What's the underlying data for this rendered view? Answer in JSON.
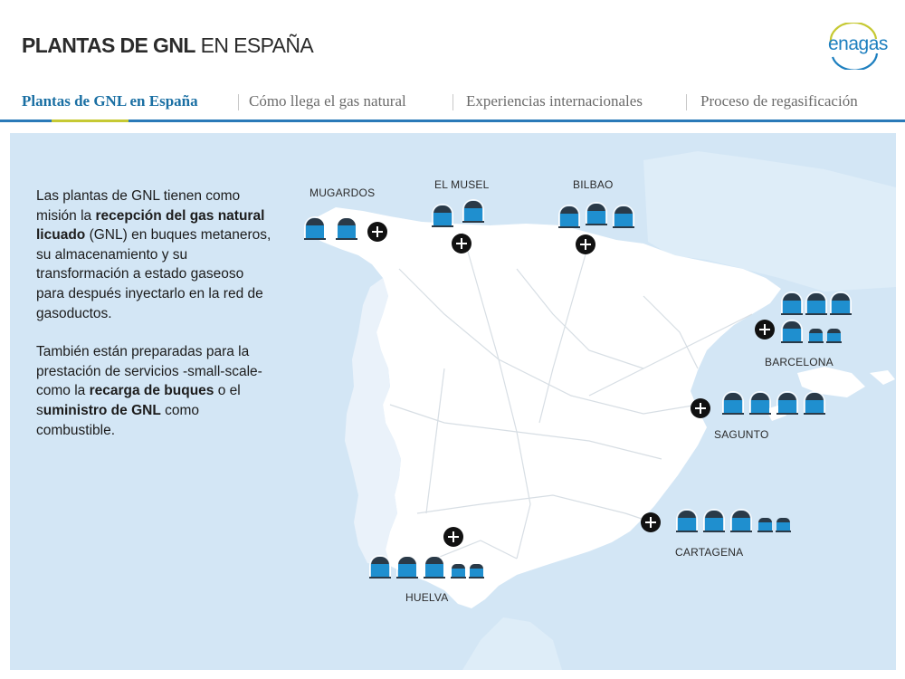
{
  "header": {
    "title_bold": "PLANTAS DE GNL",
    "title_light": " EN ESPAÑA",
    "logo_text": "enagas"
  },
  "tabs": [
    {
      "label": "Plantas de GNL en España",
      "active": true
    },
    {
      "label": "Cómo llega el gas natural",
      "active": false
    },
    {
      "label": "Experiencias internacionales",
      "active": false
    },
    {
      "label": "Proceso de regasificación",
      "active": false
    }
  ],
  "intro": {
    "p1_a": "Las plantas de GNL tienen como misión la ",
    "p1_b": "recepción del gas natural licuado",
    "p1_c": " (GNL) en buques metaneros, su almacenamiento y su transformación a estado gaseoso para después inyectarlo en la red de gasoductos.",
    "p2_a": "También están preparadas para la prestación de servicios -small-scale- como la ",
    "p2_b": "recarga de buques",
    "p2_c": " o el s",
    "p2_d": "uministro de GNL",
    "p2_e": " como combustible."
  },
  "plants": [
    {
      "name": "MUGARDOS",
      "tanks": 2,
      "small_tanks": 0
    },
    {
      "name": "EL MUSEL",
      "tanks": 2,
      "small_tanks": 0
    },
    {
      "name": "BILBAO",
      "tanks": 3,
      "small_tanks": 0
    },
    {
      "name": "BARCELONA",
      "tanks": 4,
      "small_tanks": 2
    },
    {
      "name": "SAGUNTO",
      "tanks": 4,
      "small_tanks": 0
    },
    {
      "name": "CARTAGENA",
      "tanks": 3,
      "small_tanks": 2
    },
    {
      "name": "HUELVA",
      "tanks": 3,
      "small_tanks": 2
    }
  ],
  "colors": {
    "sea": "#d3e6f5",
    "land": "#ffffff",
    "tank_body": "#1f8fcf",
    "tank_cap": "#2a3a48",
    "tab_active": "#1a6fa3",
    "tab_rule": "#2a7ab8",
    "tab_indicator": "#c6c933"
  }
}
